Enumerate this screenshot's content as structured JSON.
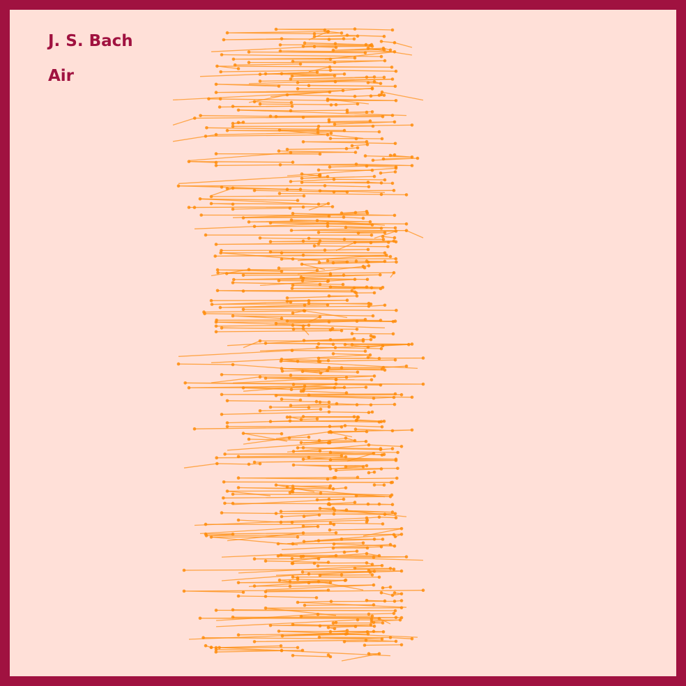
{
  "composer": "J. S. Bach",
  "piece": "Air",
  "colors": {
    "border": "#a01240",
    "background": "#ffe0d8",
    "title": "#a01240",
    "line": "#ff8c0a"
  }
}
